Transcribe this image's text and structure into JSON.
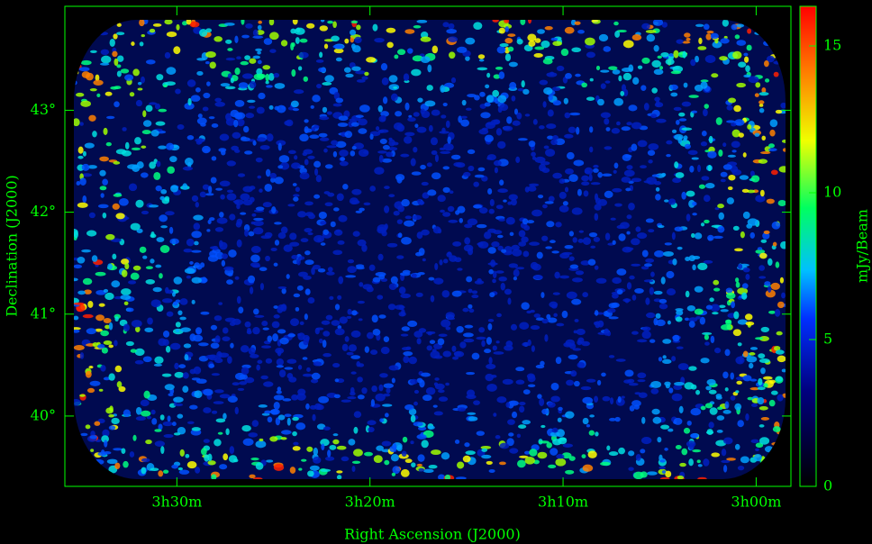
{
  "chart_data": {
    "type": "image",
    "xlabel": "Right Ascension (J2000)",
    "ylabel": "Declination (J2000)",
    "colorbar_label": "mJy/Beam",
    "xlim": [
      215.8,
      178.2
    ],
    "xticks": [
      {
        "value": 210,
        "label": "3h30m"
      },
      {
        "value": 200,
        "label": "3h20m"
      },
      {
        "value": 190,
        "label": "3h10m"
      },
      {
        "value": 180,
        "label": "3h00m"
      }
    ],
    "ylim": [
      39.31,
      44.02
    ],
    "yticks": [
      {
        "value": 40,
        "label": "40°"
      },
      {
        "value": 41,
        "label": "41°"
      },
      {
        "value": 42,
        "label": "42°"
      },
      {
        "value": 43,
        "label": "43°"
      }
    ],
    "clim": [
      0,
      16.35
    ],
    "cticks": [
      0,
      5,
      10,
      15
    ],
    "color": "#00ff00"
  }
}
